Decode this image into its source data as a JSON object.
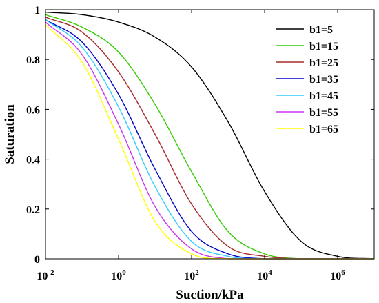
{
  "chart_data": {
    "type": "line",
    "xlabel": "Suction/kPa",
    "ylabel": "Saturation",
    "xscale": "log",
    "xlim": [
      0.01,
      10000000
    ],
    "ylim": [
      0,
      1
    ],
    "x_ticks": [
      {
        "value": 0.01,
        "base": "10",
        "exp": "-2"
      },
      {
        "value": 1,
        "base": "10",
        "exp": "0"
      },
      {
        "value": 100,
        "base": "10",
        "exp": "2"
      },
      {
        "value": 10000,
        "base": "10",
        "exp": "4"
      },
      {
        "value": 1000000,
        "base": "10",
        "exp": "6"
      }
    ],
    "y_ticks": [
      {
        "value": 0,
        "label": "0"
      },
      {
        "value": 0.2,
        "label": "0.2"
      },
      {
        "value": 0.4,
        "label": "0.4"
      },
      {
        "value": 0.6,
        "label": "0.6"
      },
      {
        "value": 0.8,
        "label": "0.8"
      },
      {
        "value": 1,
        "label": "1"
      }
    ],
    "grid": false,
    "legend_position": "top-right",
    "x": [
      0.01,
      0.1,
      1,
      10,
      100,
      1000,
      10000,
      100000,
      1000000,
      10000000
    ],
    "series": [
      {
        "name": "b1=5",
        "color": "#000000",
        "values": [
          0.99,
          0.98,
          0.95,
          0.89,
          0.77,
          0.55,
          0.27,
          0.07,
          0.01,
          0.0
        ]
      },
      {
        "name": "b1=15",
        "color": "#33cc00",
        "values": [
          0.98,
          0.93,
          0.83,
          0.62,
          0.35,
          0.11,
          0.02,
          0.0,
          0.0,
          0.0
        ]
      },
      {
        "name": "b1=25",
        "color": "#a52a2a",
        "values": [
          0.97,
          0.91,
          0.75,
          0.5,
          0.22,
          0.05,
          0.01,
          0.0,
          0.0,
          0.0
        ]
      },
      {
        "name": "b1=35",
        "color": "#0000cc",
        "values": [
          0.96,
          0.87,
          0.66,
          0.36,
          0.11,
          0.02,
          0.0,
          0.0,
          0.0,
          0.0
        ]
      },
      {
        "name": "b1=45",
        "color": "#33ccff",
        "values": [
          0.96,
          0.85,
          0.61,
          0.29,
          0.07,
          0.01,
          0.0,
          0.0,
          0.0,
          0.0
        ]
      },
      {
        "name": "b1=55",
        "color": "#cc33ee",
        "values": [
          0.95,
          0.82,
          0.54,
          0.21,
          0.04,
          0.0,
          0.0,
          0.0,
          0.0,
          0.0
        ]
      },
      {
        "name": "b1=65",
        "color": "#ffff00",
        "values": [
          0.94,
          0.79,
          0.48,
          0.15,
          0.02,
          0.0,
          0.0,
          0.0,
          0.0,
          0.0
        ]
      }
    ]
  }
}
